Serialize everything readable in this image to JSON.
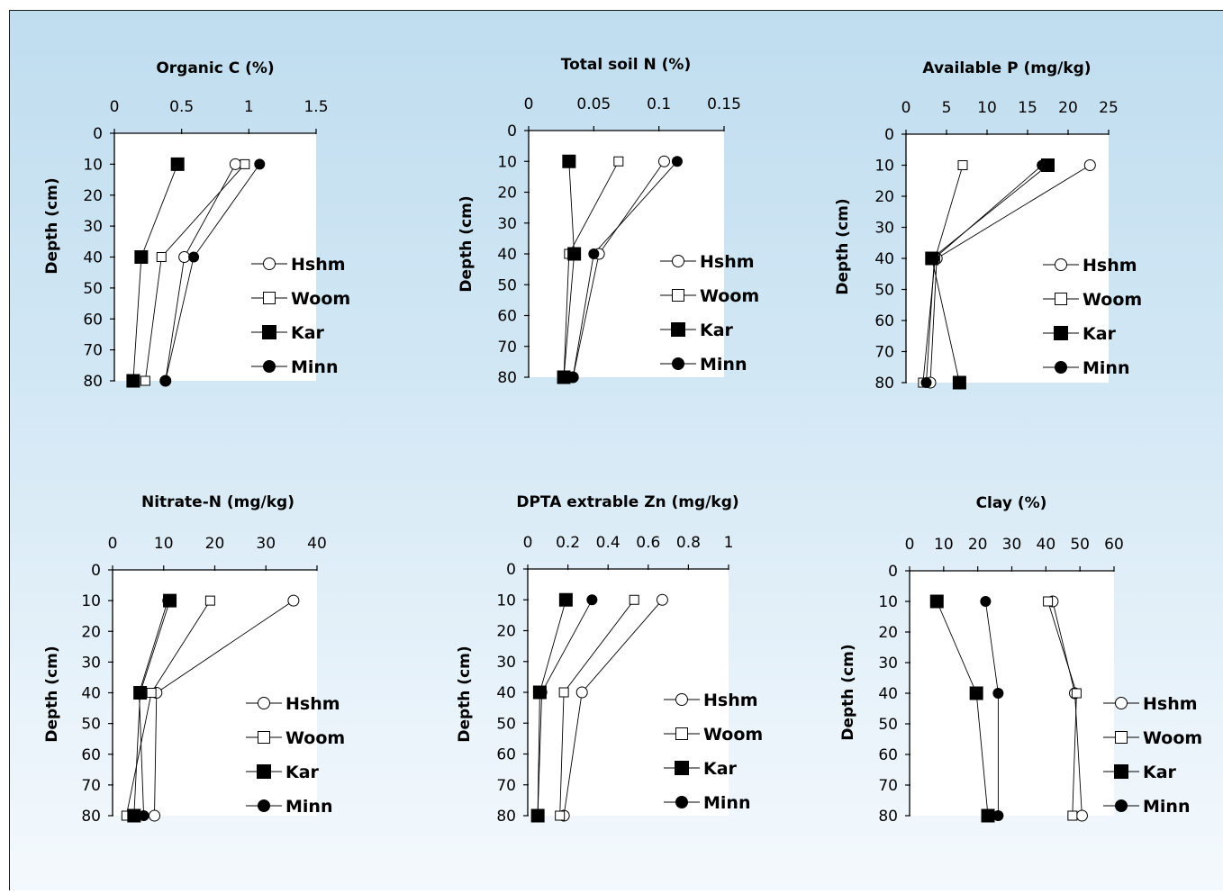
{
  "chart_data": [
    {
      "type": "line",
      "title": "Organic C (%)",
      "ylabel": "Depth (cm)",
      "xlabel": "",
      "xlim": [
        0,
        1.5
      ],
      "xticks": [
        "0",
        "0.5",
        "1",
        "1.5"
      ],
      "ylim": [
        0,
        80
      ],
      "yticks": [
        "0",
        "10",
        "20",
        "30",
        "40",
        "50",
        "60",
        "70",
        "80"
      ],
      "depth": [
        10,
        40,
        80
      ],
      "series": [
        {
          "name": "Hshm",
          "marker": "circle-open",
          "values": [
            0.9,
            0.52,
            0.38
          ]
        },
        {
          "name": "Woom",
          "marker": "square-open",
          "values": [
            0.97,
            0.35,
            0.23
          ]
        },
        {
          "name": "Kar",
          "marker": "square-filled",
          "values": [
            0.47,
            0.2,
            0.14
          ]
        },
        {
          "name": "Minn",
          "marker": "circle-filled",
          "values": [
            1.08,
            0.59,
            0.38
          ]
        }
      ]
    },
    {
      "type": "line",
      "title": "Total soil N (%)",
      "ylabel": "Depth (cm)",
      "xlabel": "",
      "xlim": [
        0,
        0.15
      ],
      "xticks": [
        "0",
        "0.05",
        "0.1",
        "0.15"
      ],
      "ylim": [
        0,
        80
      ],
      "yticks": [
        "0",
        "10",
        "20",
        "30",
        "40",
        "50",
        "60",
        "70",
        "80"
      ],
      "depth": [
        10,
        40,
        80
      ],
      "series": [
        {
          "name": "Hshm",
          "marker": "circle-open",
          "values": [
            0.104,
            0.054,
            0.034
          ]
        },
        {
          "name": "Woom",
          "marker": "square-open",
          "values": [
            0.069,
            0.031,
            0.027
          ]
        },
        {
          "name": "Kar",
          "marker": "square-filled",
          "values": [
            0.031,
            0.035,
            0.027
          ]
        },
        {
          "name": "Minn",
          "marker": "circle-filled",
          "values": [
            0.114,
            0.05,
            0.034
          ]
        }
      ]
    },
    {
      "type": "line",
      "title": "Available P (mg/kg)",
      "ylabel": "Depth (cm)",
      "xlabel": "",
      "xlim": [
        0,
        25
      ],
      "xticks": [
        "0",
        "5",
        "10",
        "15",
        "20",
        "25"
      ],
      "ylim": [
        0,
        80
      ],
      "yticks": [
        "0",
        "10",
        "20",
        "30",
        "40",
        "50",
        "60",
        "70",
        "80"
      ],
      "depth": [
        10,
        40,
        80
      ],
      "series": [
        {
          "name": "Hshm",
          "marker": "circle-open",
          "values": [
            22.7,
            3.8,
            3.0
          ]
        },
        {
          "name": "Woom",
          "marker": "square-open",
          "values": [
            7.0,
            3.6,
            2.1
          ]
        },
        {
          "name": "Kar",
          "marker": "square-filled",
          "values": [
            17.5,
            3.2,
            6.6
          ]
        },
        {
          "name": "Minn",
          "marker": "circle-filled",
          "values": [
            16.8,
            3.5,
            2.5
          ]
        }
      ]
    },
    {
      "type": "line",
      "title": "Nitrate-N (mg/kg)",
      "ylabel": "Depth (cm)",
      "xlabel": "",
      "xlim": [
        0,
        40
      ],
      "xticks": [
        "0",
        "10",
        "20",
        "30",
        "40"
      ],
      "ylim": [
        0,
        80
      ],
      "yticks": [
        "0",
        "10",
        "20",
        "30",
        "40",
        "50",
        "60",
        "70",
        "80"
      ],
      "depth": [
        10,
        40,
        80
      ],
      "series": [
        {
          "name": "Hshm",
          "marker": "circle-open",
          "values": [
            35.4,
            8.6,
            8.2
          ]
        },
        {
          "name": "Woom",
          "marker": "square-open",
          "values": [
            19.1,
            7.6,
            2.7
          ]
        },
        {
          "name": "Kar",
          "marker": "square-filled",
          "values": [
            11.2,
            5.4,
            4.2
          ]
        },
        {
          "name": "Minn",
          "marker": "circle-filled",
          "values": [
            10.8,
            5.2,
            6.1
          ]
        }
      ]
    },
    {
      "type": "line",
      "title": "DPTA extrable Zn (mg/kg)",
      "ylabel": "Depth (cm)",
      "xlabel": "",
      "xlim": [
        0,
        1
      ],
      "xticks": [
        "0",
        "0.2",
        "0.4",
        "0.6",
        "0.8",
        "1"
      ],
      "ylim": [
        0,
        80
      ],
      "yticks": [
        "0",
        "10",
        "20",
        "30",
        "40",
        "50",
        "60",
        "70",
        "80"
      ],
      "depth": [
        10,
        40,
        80
      ],
      "series": [
        {
          "name": "Hshm",
          "marker": "circle-open",
          "values": [
            0.67,
            0.27,
            0.18
          ]
        },
        {
          "name": "Woom",
          "marker": "square-open",
          "values": [
            0.53,
            0.18,
            0.16
          ]
        },
        {
          "name": "Kar",
          "marker": "square-filled",
          "values": [
            0.19,
            0.06,
            0.05
          ]
        },
        {
          "name": "Minn",
          "marker": "circle-filled",
          "values": [
            0.32,
            0.07,
            0.05
          ]
        }
      ]
    },
    {
      "type": "line",
      "title": "Clay (%)",
      "ylabel": "Depth (cm)",
      "xlabel": "",
      "xlim": [
        0,
        60
      ],
      "xticks": [
        "0",
        "10",
        "20",
        "30",
        "40",
        "50",
        "60"
      ],
      "ylim": [
        0,
        80
      ],
      "yticks": [
        "0",
        "10",
        "20",
        "30",
        "40",
        "50",
        "60",
        "70",
        "80"
      ],
      "depth": [
        10,
        40,
        80
      ],
      "series": [
        {
          "name": "Hshm",
          "marker": "circle-open",
          "values": [
            42.0,
            48.5,
            50.6
          ]
        },
        {
          "name": "Woom",
          "marker": "square-open",
          "values": [
            40.6,
            49.0,
            47.8
          ]
        },
        {
          "name": "Kar",
          "marker": "square-filled",
          "values": [
            8.0,
            19.6,
            23.0
          ]
        },
        {
          "name": "Minn",
          "marker": "circle-filled",
          "values": [
            22.3,
            26.0,
            26.0
          ]
        }
      ]
    }
  ]
}
